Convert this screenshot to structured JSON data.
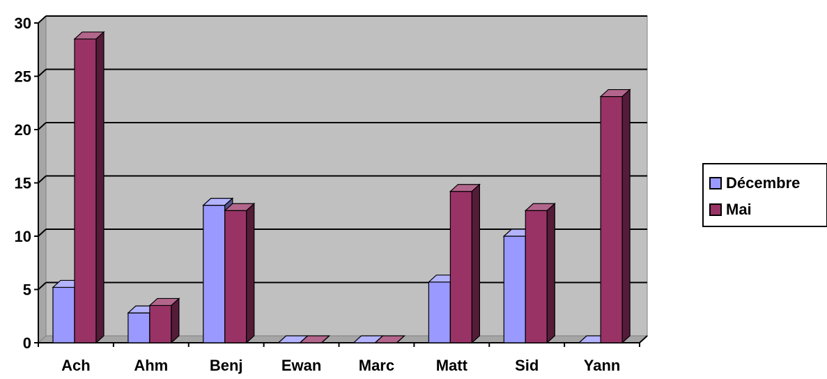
{
  "chart_data": {
    "type": "bar",
    "categories": [
      "Ach",
      "Ahm",
      "Benj",
      "Ewan",
      "Marc",
      "Matt",
      "Sid",
      "Yann"
    ],
    "series": [
      {
        "name": "Décembre",
        "color": "#9999ff",
        "values": [
          5.2,
          2.8,
          12.9,
          0,
          0,
          5.7,
          10,
          0
        ]
      },
      {
        "name": "Mai",
        "color": "#993366",
        "values": [
          28.5,
          3.5,
          12.4,
          0,
          0,
          14.2,
          12.4,
          23.1
        ]
      }
    ],
    "y_ticks": [
      "0",
      "5",
      "10",
      "15",
      "20",
      "25",
      "30"
    ],
    "ylim": [
      0,
      30
    ],
    "grid": true,
    "style": "3d-clustered-column",
    "plot_background": "#c0c0c0",
    "legend_position": "right"
  }
}
